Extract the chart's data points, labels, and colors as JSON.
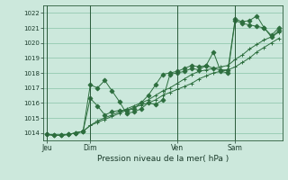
{
  "background_color": "#cce8dc",
  "plot_bg_color": "#cce8dc",
  "grid_color": "#88c4a8",
  "line_color": "#2d6e3e",
  "ylabel": "Pression niveau de la mer( hPa )",
  "ylim": [
    1013.5,
    1022.5
  ],
  "yticks": [
    1014,
    1015,
    1016,
    1017,
    1018,
    1019,
    1020,
    1021,
    1022
  ],
  "day_labels": [
    "Jeu",
    "Dim",
    "Ven",
    "Sam"
  ],
  "day_positions": [
    0,
    6,
    18,
    26
  ],
  "n_points": 33,
  "series": [
    [
      1013.9,
      1013.85,
      1013.85,
      1013.9,
      1014.0,
      1014.1,
      1017.2,
      1017.0,
      1017.5,
      1016.8,
      1016.1,
      1015.3,
      1015.4,
      1015.6,
      1016.0,
      1015.9,
      1016.2,
      1017.9,
      1018.0,
      1018.1,
      1018.3,
      1018.2,
      1018.5,
      1019.4,
      1018.1,
      1018.0,
      1021.5,
      1021.3,
      1021.2,
      1021.1,
      1021.0,
      1020.4,
      1020.8
    ],
    [
      1013.9,
      1013.85,
      1013.85,
      1013.9,
      1014.0,
      1014.1,
      1016.3,
      1015.8,
      1015.2,
      1015.4,
      1015.5,
      1015.5,
      1015.6,
      1016.0,
      1016.5,
      1017.2,
      1017.9,
      1018.0,
      1018.1,
      1018.3,
      1018.5,
      1018.4,
      1018.5,
      1018.3,
      1018.2,
      1018.2,
      1021.6,
      1021.4,
      1021.5,
      1021.8,
      1021.0,
      1020.5,
      1021.0
    ],
    [
      1013.9,
      1013.85,
      1013.85,
      1013.9,
      1014.0,
      1014.1,
      1014.5,
      1014.8,
      1015.0,
      1015.2,
      1015.4,
      1015.6,
      1015.8,
      1016.0,
      1016.2,
      1016.5,
      1016.8,
      1017.0,
      1017.3,
      1017.6,
      1017.9,
      1018.1,
      1018.2,
      1018.3,
      1018.4,
      1018.5,
      1018.9,
      1019.2,
      1019.6,
      1019.9,
      1020.2,
      1020.4,
      1020.7
    ],
    [
      1013.9,
      1013.85,
      1013.85,
      1013.9,
      1014.0,
      1014.1,
      1014.5,
      1014.7,
      1014.9,
      1015.1,
      1015.3,
      1015.5,
      1015.7,
      1015.85,
      1016.0,
      1016.2,
      1016.5,
      1016.7,
      1016.9,
      1017.1,
      1017.3,
      1017.6,
      1017.8,
      1018.0,
      1018.1,
      1018.2,
      1018.4,
      1018.7,
      1019.0,
      1019.4,
      1019.7,
      1020.0,
      1020.3
    ]
  ]
}
